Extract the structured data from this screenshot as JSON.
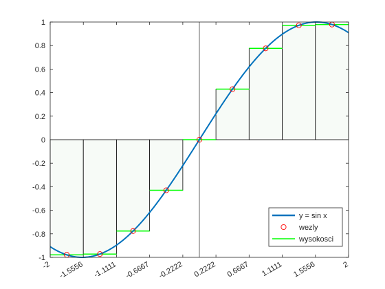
{
  "chart_data": {
    "type": "line",
    "title": "",
    "xlabel": "",
    "ylabel": "",
    "xlim": [
      -2,
      2
    ],
    "ylim": [
      -1,
      1
    ],
    "grid": false,
    "legend_position": "bottom-right",
    "x_ticks": [
      -2,
      -1.5556,
      -1.1111,
      -0.6667,
      -0.2222,
      0.2222,
      0.6667,
      1.1111,
      1.5556,
      2
    ],
    "x_tick_labels": [
      "-2",
      "-1.5556",
      "-1.1111",
      "-0.6667",
      "-0.2222",
      "0.2222",
      "0.6667",
      "1.1111",
      "1.5556",
      "2"
    ],
    "y_ticks": [
      -1,
      -0.8,
      -0.6,
      -0.4,
      -0.2,
      0,
      0.2,
      0.4,
      0.6,
      0.8,
      1
    ],
    "y_tick_labels": [
      "-1",
      "-0.8",
      "-0.6",
      "-0.4",
      "-0.2",
      "0",
      "0.2",
      "0.4",
      "0.6",
      "0.8",
      "1"
    ],
    "series": [
      {
        "name": "y = sin x",
        "kind": "curve",
        "function": "sin",
        "domain": [
          -2,
          2
        ],
        "color": "#0072bd"
      },
      {
        "name": "wezly",
        "kind": "markers",
        "marker": "circle",
        "color": "#ff0000",
        "x": [
          -1.7778,
          -1.3333,
          -0.8889,
          -0.4444,
          0,
          0.4444,
          0.8889,
          1.3333,
          1.7778
        ],
        "y": [
          -0.9786,
          -0.9719,
          -0.7761,
          -0.4298,
          0,
          0.4298,
          0.7761,
          0.9719,
          0.9786
        ]
      },
      {
        "name": "wysokosci",
        "kind": "steps",
        "color": "#00ff00",
        "edges": [
          -2,
          -1.5556,
          -1.1111,
          -0.6667,
          -0.2222,
          0.2222,
          0.6667,
          1.1111,
          1.5556,
          2
        ],
        "levels": [
          -0.9786,
          -0.9719,
          -0.7761,
          -0.4298,
          0,
          0.4298,
          0.7761,
          0.9719,
          0.9786
        ]
      }
    ],
    "rectangles": {
      "edges": [
        -2,
        -1.5556,
        -1.1111,
        -0.6667,
        -0.2222,
        0.2222,
        0.6667,
        1.1111,
        1.5556,
        2
      ],
      "heights": [
        -0.9786,
        -0.9719,
        -0.7761,
        -0.4298,
        0,
        0.4298,
        0.7761,
        0.9719,
        0.9786
      ],
      "fill": "#f7fbf7",
      "stroke": "#000000"
    },
    "vertical_line_x": 0
  }
}
